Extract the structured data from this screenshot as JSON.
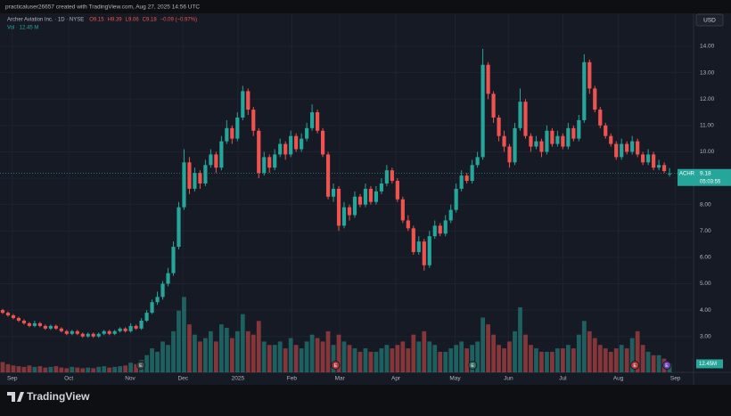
{
  "chart_data": {
    "type": "candlestick",
    "credit": "practicaluser26657 created with TradingView.com, Aug 27, 2025 14:56 UTC",
    "legend": "Archer Aviation Inc. · 1D · NYSE",
    "ohlc_legend": [
      "O9.15",
      "H9.39",
      "L9.06",
      "C9.18",
      "−0.09 (−0.97%)"
    ],
    "volume_legend": "Vol · 12.45 M",
    "currency": "USD",
    "symbol_tag": "ACHR",
    "last_price_label": "9.18",
    "countdown": "05:03:55",
    "volume_label": "12.45M",
    "logo": "TradingView",
    "up_color": "#26a69a",
    "down_color": "#ef5350",
    "grid": true,
    "xlim": [
      0,
      130
    ],
    "xticks": [
      {
        "value": 2.3,
        "label": "Sep"
      },
      {
        "value": 12.9,
        "label": "Oct"
      },
      {
        "value": 24.4,
        "label": "Nov"
      },
      {
        "value": 34.3,
        "label": "Dec"
      },
      {
        "value": 44.6,
        "label": "2025"
      },
      {
        "value": 54.7,
        "label": "Feb"
      },
      {
        "value": 63.7,
        "label": "Mar"
      },
      {
        "value": 74.2,
        "label": "Apr"
      },
      {
        "value": 85.3,
        "label": "May"
      },
      {
        "value": 95.3,
        "label": "Jun"
      },
      {
        "value": 105.5,
        "label": "Jul"
      },
      {
        "value": 115.9,
        "label": "Aug"
      },
      {
        "value": 126.6,
        "label": "Sep"
      }
    ],
    "ylim": [
      1.64,
      15.25
    ],
    "yticks": [
      {
        "value": 3,
        "label": "3.00"
      },
      {
        "value": 4,
        "label": "4.00"
      },
      {
        "value": 5,
        "label": "5.00"
      },
      {
        "value": 6,
        "label": "6.00"
      },
      {
        "value": 7,
        "label": "7.00"
      },
      {
        "value": 8,
        "label": "8.00"
      },
      {
        "value": 9,
        "label": "9.00"
      },
      {
        "value": 10,
        "label": "10.00"
      },
      {
        "value": 11,
        "label": "11.00"
      },
      {
        "value": 12,
        "label": "12.00"
      },
      {
        "value": 13,
        "label": "13.00"
      },
      {
        "value": 14,
        "label": "14.00"
      }
    ],
    "volume_lim": [
      0,
      130
    ],
    "events": [
      {
        "label": "E",
        "x": 26.4,
        "color": "#3a4a44"
      },
      {
        "label": "E",
        "x": 62.9,
        "color": "#b23a3a"
      },
      {
        "label": "E",
        "x": 88.6,
        "color": "#2f6e5e"
      },
      {
        "label": "E",
        "x": 119,
        "color": "#b23a3a"
      },
      {
        "label": "E",
        "x": 125,
        "color": "#6a3fb0"
      }
    ],
    "candles": [
      [
        4.0,
        4.05,
        3.85,
        3.9
      ],
      [
        3.9,
        3.95,
        3.75,
        3.8
      ],
      [
        3.8,
        3.85,
        3.65,
        3.7
      ],
      [
        3.7,
        3.75,
        3.55,
        3.6
      ],
      [
        3.6,
        3.65,
        3.45,
        3.5
      ],
      [
        3.5,
        3.55,
        3.35,
        3.4
      ],
      [
        3.4,
        3.6,
        3.35,
        3.5
      ],
      [
        3.5,
        3.55,
        3.35,
        3.4
      ],
      [
        3.4,
        3.45,
        3.25,
        3.3
      ],
      [
        3.3,
        3.45,
        3.25,
        3.4
      ],
      [
        3.4,
        3.45,
        3.25,
        3.3
      ],
      [
        3.3,
        3.35,
        3.15,
        3.2
      ],
      [
        3.2,
        3.25,
        3.05,
        3.1
      ],
      [
        3.1,
        3.25,
        3.05,
        3.2
      ],
      [
        3.2,
        3.25,
        3.05,
        3.1
      ],
      [
        3.1,
        3.15,
        2.95,
        3.0
      ],
      [
        3.0,
        3.15,
        2.95,
        3.1
      ],
      [
        3.1,
        3.15,
        2.95,
        3.0
      ],
      [
        3.0,
        3.15,
        2.95,
        3.1
      ],
      [
        3.1,
        3.25,
        3.05,
        3.2
      ],
      [
        3.2,
        3.25,
        3.05,
        3.1
      ],
      [
        3.1,
        3.25,
        3.05,
        3.2
      ],
      [
        3.2,
        3.35,
        3.15,
        3.3
      ],
      [
        3.3,
        3.35,
        3.15,
        3.2
      ],
      [
        3.2,
        3.5,
        3.15,
        3.4
      ],
      [
        3.4,
        3.45,
        3.25,
        3.3
      ],
      [
        3.3,
        3.7,
        3.25,
        3.6
      ],
      [
        3.6,
        4.0,
        3.55,
        3.9
      ],
      [
        3.9,
        4.4,
        3.85,
        4.3
      ],
      [
        4.3,
        4.7,
        4.2,
        4.5
      ],
      [
        4.5,
        5.1,
        4.4,
        5.0
      ],
      [
        5.0,
        5.6,
        4.9,
        5.4
      ],
      [
        5.4,
        6.6,
        5.3,
        6.4
      ],
      [
        6.4,
        8.1,
        6.3,
        7.9
      ],
      [
        7.9,
        10.1,
        7.8,
        9.6
      ],
      [
        9.6,
        9.8,
        8.4,
        8.6
      ],
      [
        8.6,
        9.4,
        8.5,
        9.2
      ],
      [
        9.2,
        9.3,
        8.6,
        8.8
      ],
      [
        8.8,
        9.7,
        8.7,
        9.5
      ],
      [
        9.5,
        10.1,
        9.4,
        9.9
      ],
      [
        9.9,
        10.0,
        9.2,
        9.4
      ],
      [
        9.4,
        10.6,
        9.3,
        10.4
      ],
      [
        10.4,
        11.2,
        10.3,
        10.9
      ],
      [
        10.9,
        11.0,
        10.3,
        10.5
      ],
      [
        10.5,
        11.5,
        10.4,
        11.3
      ],
      [
        11.3,
        12.5,
        11.2,
        12.3
      ],
      [
        12.3,
        12.4,
        11.4,
        11.6
      ],
      [
        11.6,
        11.7,
        10.6,
        10.8
      ],
      [
        10.8,
        10.9,
        9.0,
        9.2
      ],
      [
        9.2,
        10.0,
        9.1,
        9.8
      ],
      [
        9.8,
        9.9,
        9.2,
        9.4
      ],
      [
        9.4,
        10.1,
        9.3,
        9.9
      ],
      [
        9.9,
        10.5,
        9.8,
        10.3
      ],
      [
        10.3,
        10.4,
        9.7,
        9.9
      ],
      [
        9.9,
        10.8,
        9.8,
        10.6
      ],
      [
        10.6,
        10.7,
        10.0,
        10.1
      ],
      [
        10.1,
        10.7,
        10.0,
        10.5
      ],
      [
        10.5,
        11.1,
        10.4,
        10.9
      ],
      [
        10.9,
        11.8,
        10.8,
        11.5
      ],
      [
        11.5,
        11.6,
        10.7,
        10.8
      ],
      [
        10.8,
        10.9,
        9.8,
        9.9
      ],
      [
        9.9,
        10.0,
        8.2,
        8.3
      ],
      [
        8.3,
        8.8,
        8.1,
        8.6
      ],
      [
        8.6,
        8.7,
        7.0,
        7.2
      ],
      [
        7.2,
        8.1,
        7.1,
        7.9
      ],
      [
        7.9,
        8.0,
        7.4,
        7.6
      ],
      [
        7.6,
        8.5,
        7.5,
        8.3
      ],
      [
        8.3,
        8.4,
        7.9,
        8.0
      ],
      [
        8.0,
        8.8,
        7.9,
        8.6
      ],
      [
        8.6,
        8.7,
        8.0,
        8.1
      ],
      [
        8.1,
        8.7,
        8.0,
        8.5
      ],
      [
        8.5,
        9.0,
        8.4,
        8.8
      ],
      [
        8.8,
        9.5,
        8.7,
        9.3
      ],
      [
        9.3,
        9.4,
        8.8,
        8.9
      ],
      [
        8.9,
        9.0,
        8.1,
        8.2
      ],
      [
        8.2,
        8.3,
        7.3,
        7.4
      ],
      [
        7.4,
        7.6,
        7.0,
        7.1
      ],
      [
        7.1,
        7.2,
        6.1,
        6.2
      ],
      [
        6.2,
        6.8,
        6.1,
        6.6
      ],
      [
        6.6,
        6.7,
        5.5,
        5.7
      ],
      [
        5.7,
        7.0,
        5.6,
        6.8
      ],
      [
        6.8,
        7.4,
        6.7,
        7.2
      ],
      [
        7.2,
        7.3,
        6.8,
        6.9
      ],
      [
        6.9,
        7.6,
        6.8,
        7.4
      ],
      [
        7.4,
        8.0,
        7.3,
        7.8
      ],
      [
        7.8,
        8.8,
        7.7,
        8.6
      ],
      [
        8.6,
        9.3,
        8.5,
        9.1
      ],
      [
        9.1,
        9.2,
        8.8,
        8.9
      ],
      [
        8.9,
        9.7,
        8.8,
        9.5
      ],
      [
        9.5,
        10.0,
        9.4,
        9.8
      ],
      [
        9.8,
        13.9,
        9.7,
        13.3
      ],
      [
        13.3,
        13.4,
        12.0,
        12.2
      ],
      [
        12.2,
        12.3,
        11.1,
        11.3
      ],
      [
        11.3,
        11.4,
        10.4,
        10.6
      ],
      [
        10.6,
        10.8,
        10.0,
        10.2
      ],
      [
        10.2,
        10.3,
        9.4,
        9.6
      ],
      [
        9.6,
        11.1,
        9.5,
        10.9
      ],
      [
        10.9,
        12.4,
        10.8,
        11.9
      ],
      [
        11.9,
        12.0,
        10.5,
        10.6
      ],
      [
        10.6,
        10.7,
        10.0,
        10.2
      ],
      [
        10.2,
        10.6,
        10.1,
        10.4
      ],
      [
        10.4,
        10.5,
        9.8,
        10.0
      ],
      [
        10.0,
        11.0,
        9.9,
        10.8
      ],
      [
        10.8,
        10.9,
        10.2,
        10.3
      ],
      [
        10.3,
        10.8,
        10.2,
        10.6
      ],
      [
        10.6,
        10.7,
        10.1,
        10.2
      ],
      [
        10.2,
        11.1,
        10.1,
        10.9
      ],
      [
        10.9,
        11.0,
        10.4,
        10.5
      ],
      [
        10.5,
        11.4,
        10.4,
        11.2
      ],
      [
        11.2,
        13.7,
        11.1,
        13.4
      ],
      [
        13.4,
        13.5,
        12.2,
        12.4
      ],
      [
        12.4,
        12.5,
        11.5,
        11.6
      ],
      [
        11.6,
        11.7,
        10.9,
        11.0
      ],
      [
        11.0,
        11.1,
        10.5,
        10.6
      ],
      [
        10.6,
        10.7,
        10.2,
        10.3
      ],
      [
        10.3,
        10.4,
        9.7,
        9.8
      ],
      [
        9.8,
        10.5,
        9.7,
        10.3
      ],
      [
        10.3,
        10.4,
        9.9,
        10.0
      ],
      [
        10.0,
        10.6,
        9.9,
        10.4
      ],
      [
        10.4,
        10.5,
        9.8,
        9.9
      ],
      [
        9.9,
        10.0,
        9.5,
        9.6
      ],
      [
        9.6,
        10.1,
        9.5,
        9.9
      ],
      [
        9.9,
        10.0,
        9.3,
        9.4
      ],
      [
        9.4,
        9.7,
        9.3,
        9.5
      ],
      [
        9.5,
        9.6,
        9.2,
        9.27
      ],
      [
        9.15,
        9.39,
        9.06,
        9.18
      ]
    ],
    "volume": [
      15,
      12,
      10,
      9,
      8,
      10,
      8,
      9,
      7,
      8,
      9,
      7,
      6,
      8,
      7,
      6,
      7,
      6,
      8,
      9,
      7,
      8,
      9,
      10,
      14,
      12,
      18,
      25,
      35,
      30,
      45,
      40,
      60,
      90,
      110,
      70,
      55,
      45,
      50,
      60,
      45,
      70,
      65,
      50,
      60,
      85,
      60,
      55,
      75,
      45,
      40,
      40,
      45,
      35,
      50,
      40,
      35,
      45,
      55,
      50,
      45,
      60,
      40,
      55,
      45,
      40,
      35,
      30,
      35,
      30,
      30,
      35,
      40,
      35,
      40,
      45,
      35,
      55,
      45,
      60,
      45,
      40,
      30,
      30,
      35,
      40,
      45,
      35,
      40,
      45,
      80,
      70,
      55,
      40,
      35,
      45,
      60,
      95,
      55,
      40,
      35,
      30,
      30,
      30,
      35,
      35,
      40,
      35,
      55,
      75,
      60,
      50,
      40,
      35,
      30,
      35,
      40,
      35,
      50,
      60,
      40,
      30,
      25,
      25,
      20,
      12.45
    ]
  }
}
